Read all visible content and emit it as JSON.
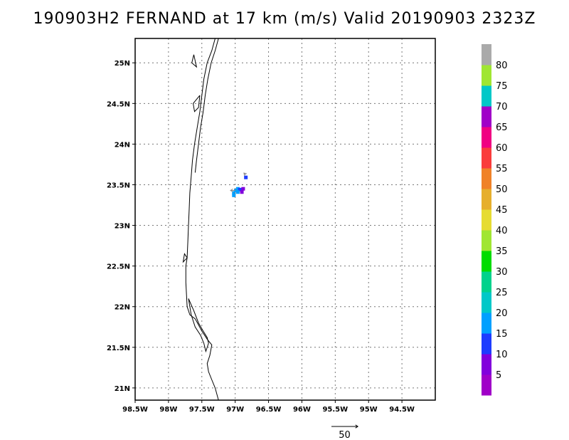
{
  "title": "190903H2 FERNAND at 17 km (m/s) Valid 20190903 2323Z",
  "map": {
    "lon_range": [
      -98.5,
      -94.0
    ],
    "lat_range": [
      20.85,
      25.3
    ],
    "lon_ticks": [
      {
        "value": -98.5,
        "label": "98.5W"
      },
      {
        "value": -98.0,
        "label": "98W"
      },
      {
        "value": -97.5,
        "label": "97.5W"
      },
      {
        "value": -97.0,
        "label": "97W"
      },
      {
        "value": -96.5,
        "label": "96.5W"
      },
      {
        "value": -96.0,
        "label": "96W"
      },
      {
        "value": -95.5,
        "label": "95.5W"
      },
      {
        "value": -95.0,
        "label": "95W"
      },
      {
        "value": -94.5,
        "label": "94.5W"
      }
    ],
    "lat_ticks": [
      {
        "value": 21.0,
        "label": "21N"
      },
      {
        "value": 21.5,
        "label": "21.5N"
      },
      {
        "value": 22.0,
        "label": "22N"
      },
      {
        "value": 22.5,
        "label": "22.5N"
      },
      {
        "value": 23.0,
        "label": "23N"
      },
      {
        "value": 23.5,
        "label": "23.5N"
      },
      {
        "value": 24.0,
        "label": "24N"
      },
      {
        "value": 24.5,
        "label": "24.5N"
      },
      {
        "value": 25.0,
        "label": "25N"
      }
    ],
    "grid": true,
    "coastlines": [
      [
        [
          -97.3,
          25.3
        ],
        [
          -97.35,
          25.15
        ],
        [
          -97.42,
          25.0
        ],
        [
          -97.47,
          24.8
        ],
        [
          -97.5,
          24.6
        ],
        [
          -97.53,
          24.4
        ],
        [
          -97.57,
          24.2
        ],
        [
          -97.61,
          24.0
        ],
        [
          -97.64,
          23.8
        ],
        [
          -97.66,
          23.6
        ],
        [
          -97.68,
          23.4
        ],
        [
          -97.69,
          23.2
        ],
        [
          -97.7,
          23.0
        ],
        [
          -97.71,
          22.8
        ],
        [
          -97.72,
          22.6
        ],
        [
          -97.74,
          22.5
        ],
        [
          -97.74,
          22.3
        ],
        [
          -97.73,
          22.15
        ],
        [
          -97.72,
          22.0
        ],
        [
          -97.68,
          21.9
        ],
        [
          -97.6,
          21.85
        ],
        [
          -97.5,
          21.7
        ],
        [
          -97.42,
          21.6
        ],
        [
          -97.35,
          21.53
        ],
        [
          -97.38,
          21.4
        ],
        [
          -97.42,
          21.3
        ],
        [
          -97.4,
          21.2
        ],
        [
          -97.35,
          21.1
        ],
        [
          -97.3,
          21.0
        ],
        [
          -97.25,
          20.85
        ]
      ],
      [
        [
          -97.25,
          25.3
        ],
        [
          -97.3,
          25.15
        ],
        [
          -97.36,
          25.0
        ],
        [
          -97.41,
          24.8
        ],
        [
          -97.45,
          24.6
        ],
        [
          -97.48,
          24.4
        ],
        [
          -97.52,
          24.2
        ],
        [
          -97.55,
          24.0
        ],
        [
          -97.58,
          23.8
        ],
        [
          -97.6,
          23.65
        ]
      ],
      [
        [
          -97.53,
          24.6
        ],
        [
          -97.63,
          24.5
        ],
        [
          -97.61,
          24.4
        ],
        [
          -97.55,
          24.45
        ],
        [
          -97.53,
          24.6
        ]
      ],
      [
        [
          -97.65,
          25.0
        ],
        [
          -97.58,
          24.95
        ],
        [
          -97.62,
          25.1
        ],
        [
          -97.65,
          25.0
        ]
      ],
      [
        [
          -97.7,
          22.1
        ],
        [
          -97.62,
          21.95
        ],
        [
          -97.55,
          21.8
        ],
        [
          -97.48,
          21.7
        ],
        [
          -97.42,
          21.62
        ],
        [
          -97.4,
          21.55
        ],
        [
          -97.44,
          21.45
        ],
        [
          -97.47,
          21.55
        ],
        [
          -97.52,
          21.65
        ],
        [
          -97.6,
          21.75
        ],
        [
          -97.66,
          21.9
        ],
        [
          -97.7,
          22.1
        ]
      ],
      [
        [
          -97.72,
          22.6
        ],
        [
          -97.78,
          22.55
        ],
        [
          -97.76,
          22.65
        ],
        [
          -97.72,
          22.6
        ]
      ]
    ],
    "wind_cells": [
      {
        "lon": -96.99,
        "lat": 23.43,
        "speed": 15
      },
      {
        "lon": -96.96,
        "lat": 23.45,
        "speed": 15
      },
      {
        "lon": -96.93,
        "lat": 23.44,
        "speed": 10
      },
      {
        "lon": -96.9,
        "lat": 23.44,
        "speed": 10
      },
      {
        "lon": -96.9,
        "lat": 23.41,
        "speed": 5
      },
      {
        "lon": -96.88,
        "lat": 23.45,
        "speed": 5
      },
      {
        "lon": -96.96,
        "lat": 23.41,
        "speed": 15
      },
      {
        "lon": -97.02,
        "lat": 23.4,
        "speed": 15
      },
      {
        "lon": -97.02,
        "lat": 23.37,
        "speed": 15
      },
      {
        "lon": -96.84,
        "lat": 23.59,
        "speed": 10
      }
    ],
    "wind_vectors": [
      {
        "lon": -97.0,
        "lat": 23.43,
        "u": -12,
        "v": 0
      },
      {
        "lon": -96.84,
        "lat": 23.62,
        "u": -5,
        "v": 5
      }
    ]
  },
  "colorbar": {
    "levels": [
      {
        "label": "",
        "color": "#a000c8"
      },
      {
        "label": "5",
        "color": "#8200dc"
      },
      {
        "label": "10",
        "color": "#1e3cff"
      },
      {
        "label": "15",
        "color": "#00a0ff"
      },
      {
        "label": "20",
        "color": "#00c8c8"
      },
      {
        "label": "25",
        "color": "#00d28c"
      },
      {
        "label": "30",
        "color": "#00dc00"
      },
      {
        "label": "35",
        "color": "#a0e632"
      },
      {
        "label": "40",
        "color": "#e6dc32"
      },
      {
        "label": "45",
        "color": "#e6af2d"
      },
      {
        "label": "50",
        "color": "#f08228"
      },
      {
        "label": "55",
        "color": "#fa3c3c"
      },
      {
        "label": "60",
        "color": "#f00082"
      },
      {
        "label": "65",
        "color": "#a000c8"
      },
      {
        "label": "70",
        "color": "#00c8c8"
      },
      {
        "label": "75",
        "color": "#a0e632"
      },
      {
        "label": "80",
        "color": "#aaaaaa"
      }
    ]
  },
  "vector_key": {
    "label": "50",
    "magnitude": 50
  }
}
